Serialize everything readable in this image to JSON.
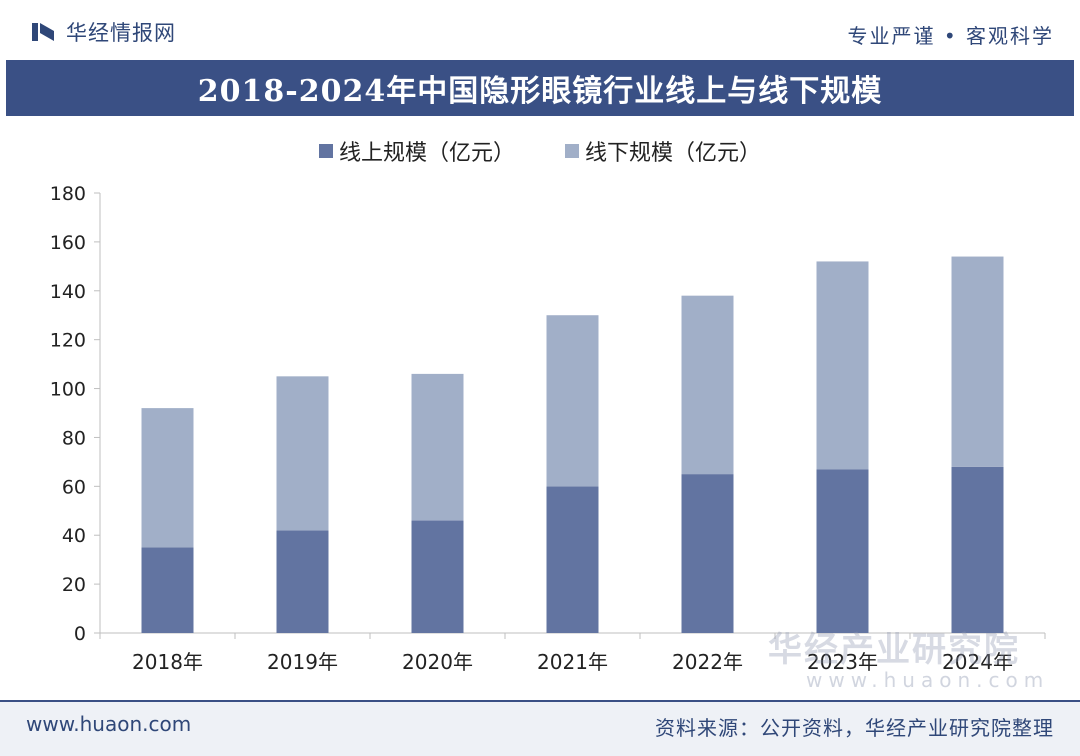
{
  "header": {
    "brand_name": "华经情报网",
    "slogan": "专业严谨 • 客观科学"
  },
  "chart_data": {
    "type": "bar",
    "stacked": true,
    "title": "2018-2024年中国隐形眼镜行业线上与线下规模",
    "categories": [
      "2018年",
      "2019年",
      "2020年",
      "2021年",
      "2022年",
      "2023年",
      "2024年"
    ],
    "series": [
      {
        "name": "线上规模（亿元）",
        "color": "#6274a1",
        "values": [
          35,
          42,
          46,
          60,
          65,
          67,
          68
        ]
      },
      {
        "name": "线下规模（亿元）",
        "color": "#a1afc8",
        "values": [
          57,
          63,
          60,
          70,
          73,
          85,
          86
        ]
      }
    ],
    "yticks": [
      "0",
      "20",
      "40",
      "60",
      "80",
      "100",
      "120",
      "140",
      "160",
      "180"
    ],
    "ylim": [
      0,
      180
    ],
    "xlabel": "",
    "ylabel": "",
    "grid": false,
    "legend": "top-center"
  },
  "watermark": {
    "text": "华经产业研究院",
    "url": "www.huaon.com"
  },
  "footer": {
    "url": "www.huaon.com",
    "source": "资料来源：公开资料，华经产业研究院整理"
  }
}
